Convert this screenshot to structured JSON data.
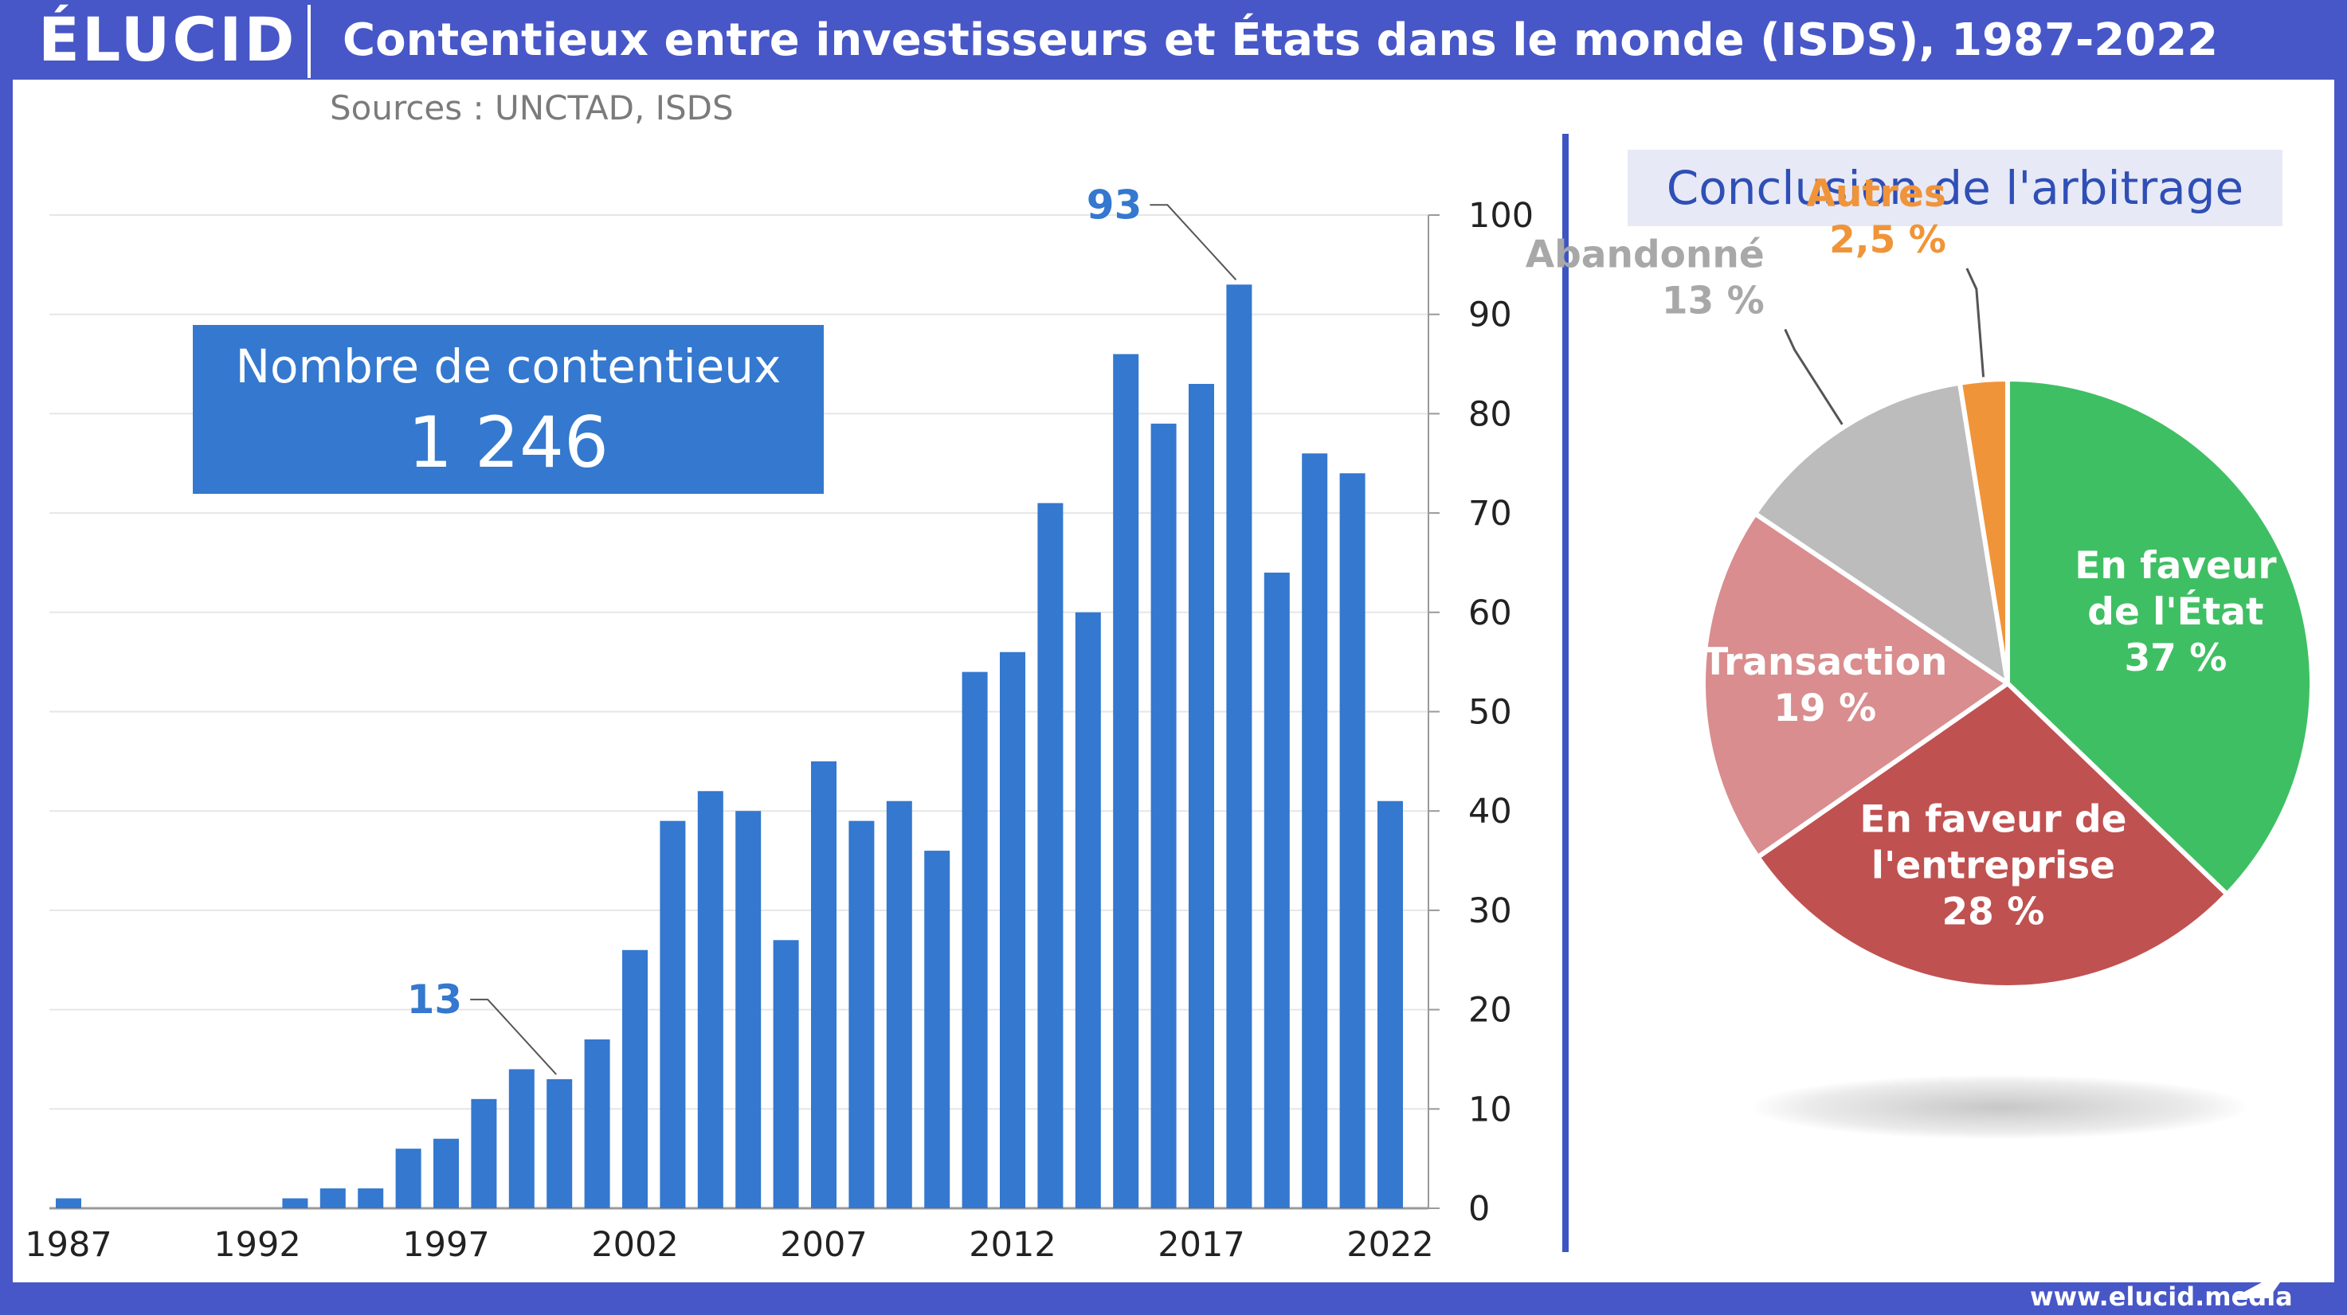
{
  "header": {
    "logo": "ÉLUCID",
    "title": "Contentieux entre investisseurs et États dans le monde (ISDS), 1987-2022",
    "source": "Sources : UNCTAD, ISDS"
  },
  "total_box": {
    "label": "Nombre de contentieux",
    "value": "1 246"
  },
  "pie_box_title": "Conclusion de l'arbitrage",
  "footer": {
    "url": "www.elucid.media"
  },
  "colors": {
    "header_bg": "#4757c7",
    "bar": "#3478cf",
    "etat": "#3fbf63",
    "entreprise": "#c05151",
    "transaction": "#d98d8e",
    "abandonne": "#bcbcbc",
    "autres": "#f0943a"
  },
  "chart_data": [
    {
      "type": "bar",
      "x": [
        1987,
        1988,
        1989,
        1990,
        1991,
        1992,
        1993,
        1994,
        1995,
        1996,
        1997,
        1998,
        1999,
        2000,
        2001,
        2002,
        2003,
        2004,
        2005,
        2006,
        2007,
        2008,
        2009,
        2010,
        2011,
        2012,
        2013,
        2014,
        2015,
        2016,
        2017,
        2018,
        2019,
        2020,
        2021,
        2022
      ],
      "values": [
        1,
        0,
        0,
        0,
        0,
        0,
        1,
        2,
        2,
        6,
        7,
        11,
        14,
        13,
        17,
        26,
        39,
        42,
        40,
        27,
        45,
        39,
        41,
        36,
        54,
        56,
        71,
        60,
        86,
        79,
        83,
        93,
        64,
        76,
        74,
        41
      ],
      "xticks": [
        "1987",
        "1992",
        "1997",
        "2002",
        "2007",
        "2012",
        "2017",
        "2022"
      ],
      "yticks": [
        "0",
        "10",
        "20",
        "30",
        "40",
        "50",
        "60",
        "70",
        "80",
        "90",
        "100"
      ],
      "ylim": [
        0,
        100
      ],
      "yaxis_side": "right",
      "grid": true,
      "annotations": [
        {
          "x": 2000,
          "text": "13"
        },
        {
          "x": 2018,
          "text": "93"
        }
      ]
    },
    {
      "type": "pie",
      "slices": [
        {
          "key": "etat",
          "lines": [
            "En faveur",
            "de l'État",
            "37 %"
          ],
          "value": 37,
          "color": "#3fbf63",
          "text_color": "#ffffff",
          "label_inside": true
        },
        {
          "key": "entreprise",
          "lines": [
            "En faveur de",
            "l'entreprise",
            "28 %"
          ],
          "value": 28,
          "color": "#c05151",
          "text_color": "#ffffff",
          "label_inside": true
        },
        {
          "key": "transaction",
          "lines": [
            "Transaction",
            "19 %"
          ],
          "value": 19,
          "color": "#d98d8e",
          "text_color": "#ffffff",
          "label_inside": true
        },
        {
          "key": "abandonne",
          "lines": [
            "Abandonné",
            "13 %"
          ],
          "value": 13,
          "color": "#bcbcbc",
          "text_color": "#a8a8a8",
          "label_inside": false
        },
        {
          "key": "autres",
          "lines": [
            "Autres",
            "2,5 %"
          ],
          "value": 2.5,
          "color": "#f0943a",
          "text_color": "#f0943a",
          "label_inside": false
        }
      ]
    }
  ]
}
